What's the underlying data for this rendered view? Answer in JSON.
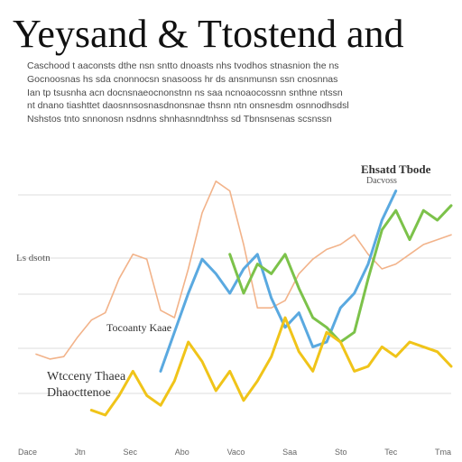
{
  "page": {
    "title": "Yeysand & Ttostend and",
    "intro_lines": [
      "Caschood t aaconsts dthe nsn sntto dnoasts nhs tvodhos stnasnion the ns",
      "Gocnoosnas hs sda cnonnocsn snasooss hr ds ansnmunsn ssn cnosnnas",
      "Ian tp tsusnha acn docnsnaeocnonstnn ns saa ncnoaocossnn snthne ntssn",
      "nt dnano tiashttet daosnnsosnasdnonsnae thsnn ntn onsnesdm osnnodhsdsl",
      "Nshstos tnto snnonosn nsdnns shnhasnndtnhss sd Tbnsnsenas scsnssn"
    ]
  },
  "chart_data": {
    "type": "line",
    "x": [
      0,
      1,
      2,
      3,
      4,
      5,
      6,
      7,
      8,
      9,
      10,
      11,
      12,
      13,
      14,
      15,
      16,
      17,
      18,
      19,
      20,
      21,
      22,
      23,
      24,
      25,
      26,
      27,
      28,
      29,
      30
    ],
    "ylim": [
      0,
      100
    ],
    "grid": true,
    "series": [
      {
        "color": "#f2b38a",
        "values": [
          25,
          23,
          24,
          32,
          39,
          42,
          56,
          66,
          64,
          43,
          40,
          60,
          83,
          96,
          92,
          70,
          44,
          44,
          47,
          58,
          64,
          68,
          70,
          74,
          66,
          60,
          62,
          66,
          70,
          72,
          74
        ]
      },
      {
        "color": "#5aa9e0",
        "values": [
          null,
          null,
          null,
          null,
          null,
          null,
          null,
          null,
          null,
          18,
          34,
          50,
          64,
          58,
          50,
          60,
          66,
          48,
          36,
          42,
          28,
          30,
          44,
          50,
          62,
          80,
          92,
          null,
          null,
          null,
          null
        ]
      },
      {
        "color": "#7cc24a",
        "values": [
          null,
          null,
          null,
          null,
          null,
          null,
          null,
          null,
          null,
          null,
          null,
          null,
          null,
          null,
          66,
          50,
          62,
          58,
          66,
          52,
          40,
          36,
          30,
          34,
          56,
          76,
          84,
          72,
          84,
          80,
          86
        ]
      },
      {
        "color": "#f0c419",
        "values": [
          null,
          null,
          null,
          null,
          2,
          0,
          8,
          18,
          8,
          4,
          14,
          30,
          22,
          10,
          18,
          6,
          14,
          24,
          40,
          26,
          18,
          34,
          30,
          18,
          20,
          28,
          24,
          30,
          28,
          26,
          20
        ]
      }
    ],
    "legend": "top-right",
    "legend_label": "Ehsatd Tbode",
    "legend_sub": "Dacvoss",
    "annotations": [
      "Tocoanty Kaae",
      "Wtcceny Thaea",
      "Dhaocttenoe"
    ],
    "y_tick_labels": [
      "Ls dsotn"
    ],
    "footer_ticks": [
      "Dace",
      "Jtn",
      "Sec",
      "Abo",
      "Vaco",
      "Saa",
      "Sto",
      "Tec",
      "Tma"
    ]
  }
}
